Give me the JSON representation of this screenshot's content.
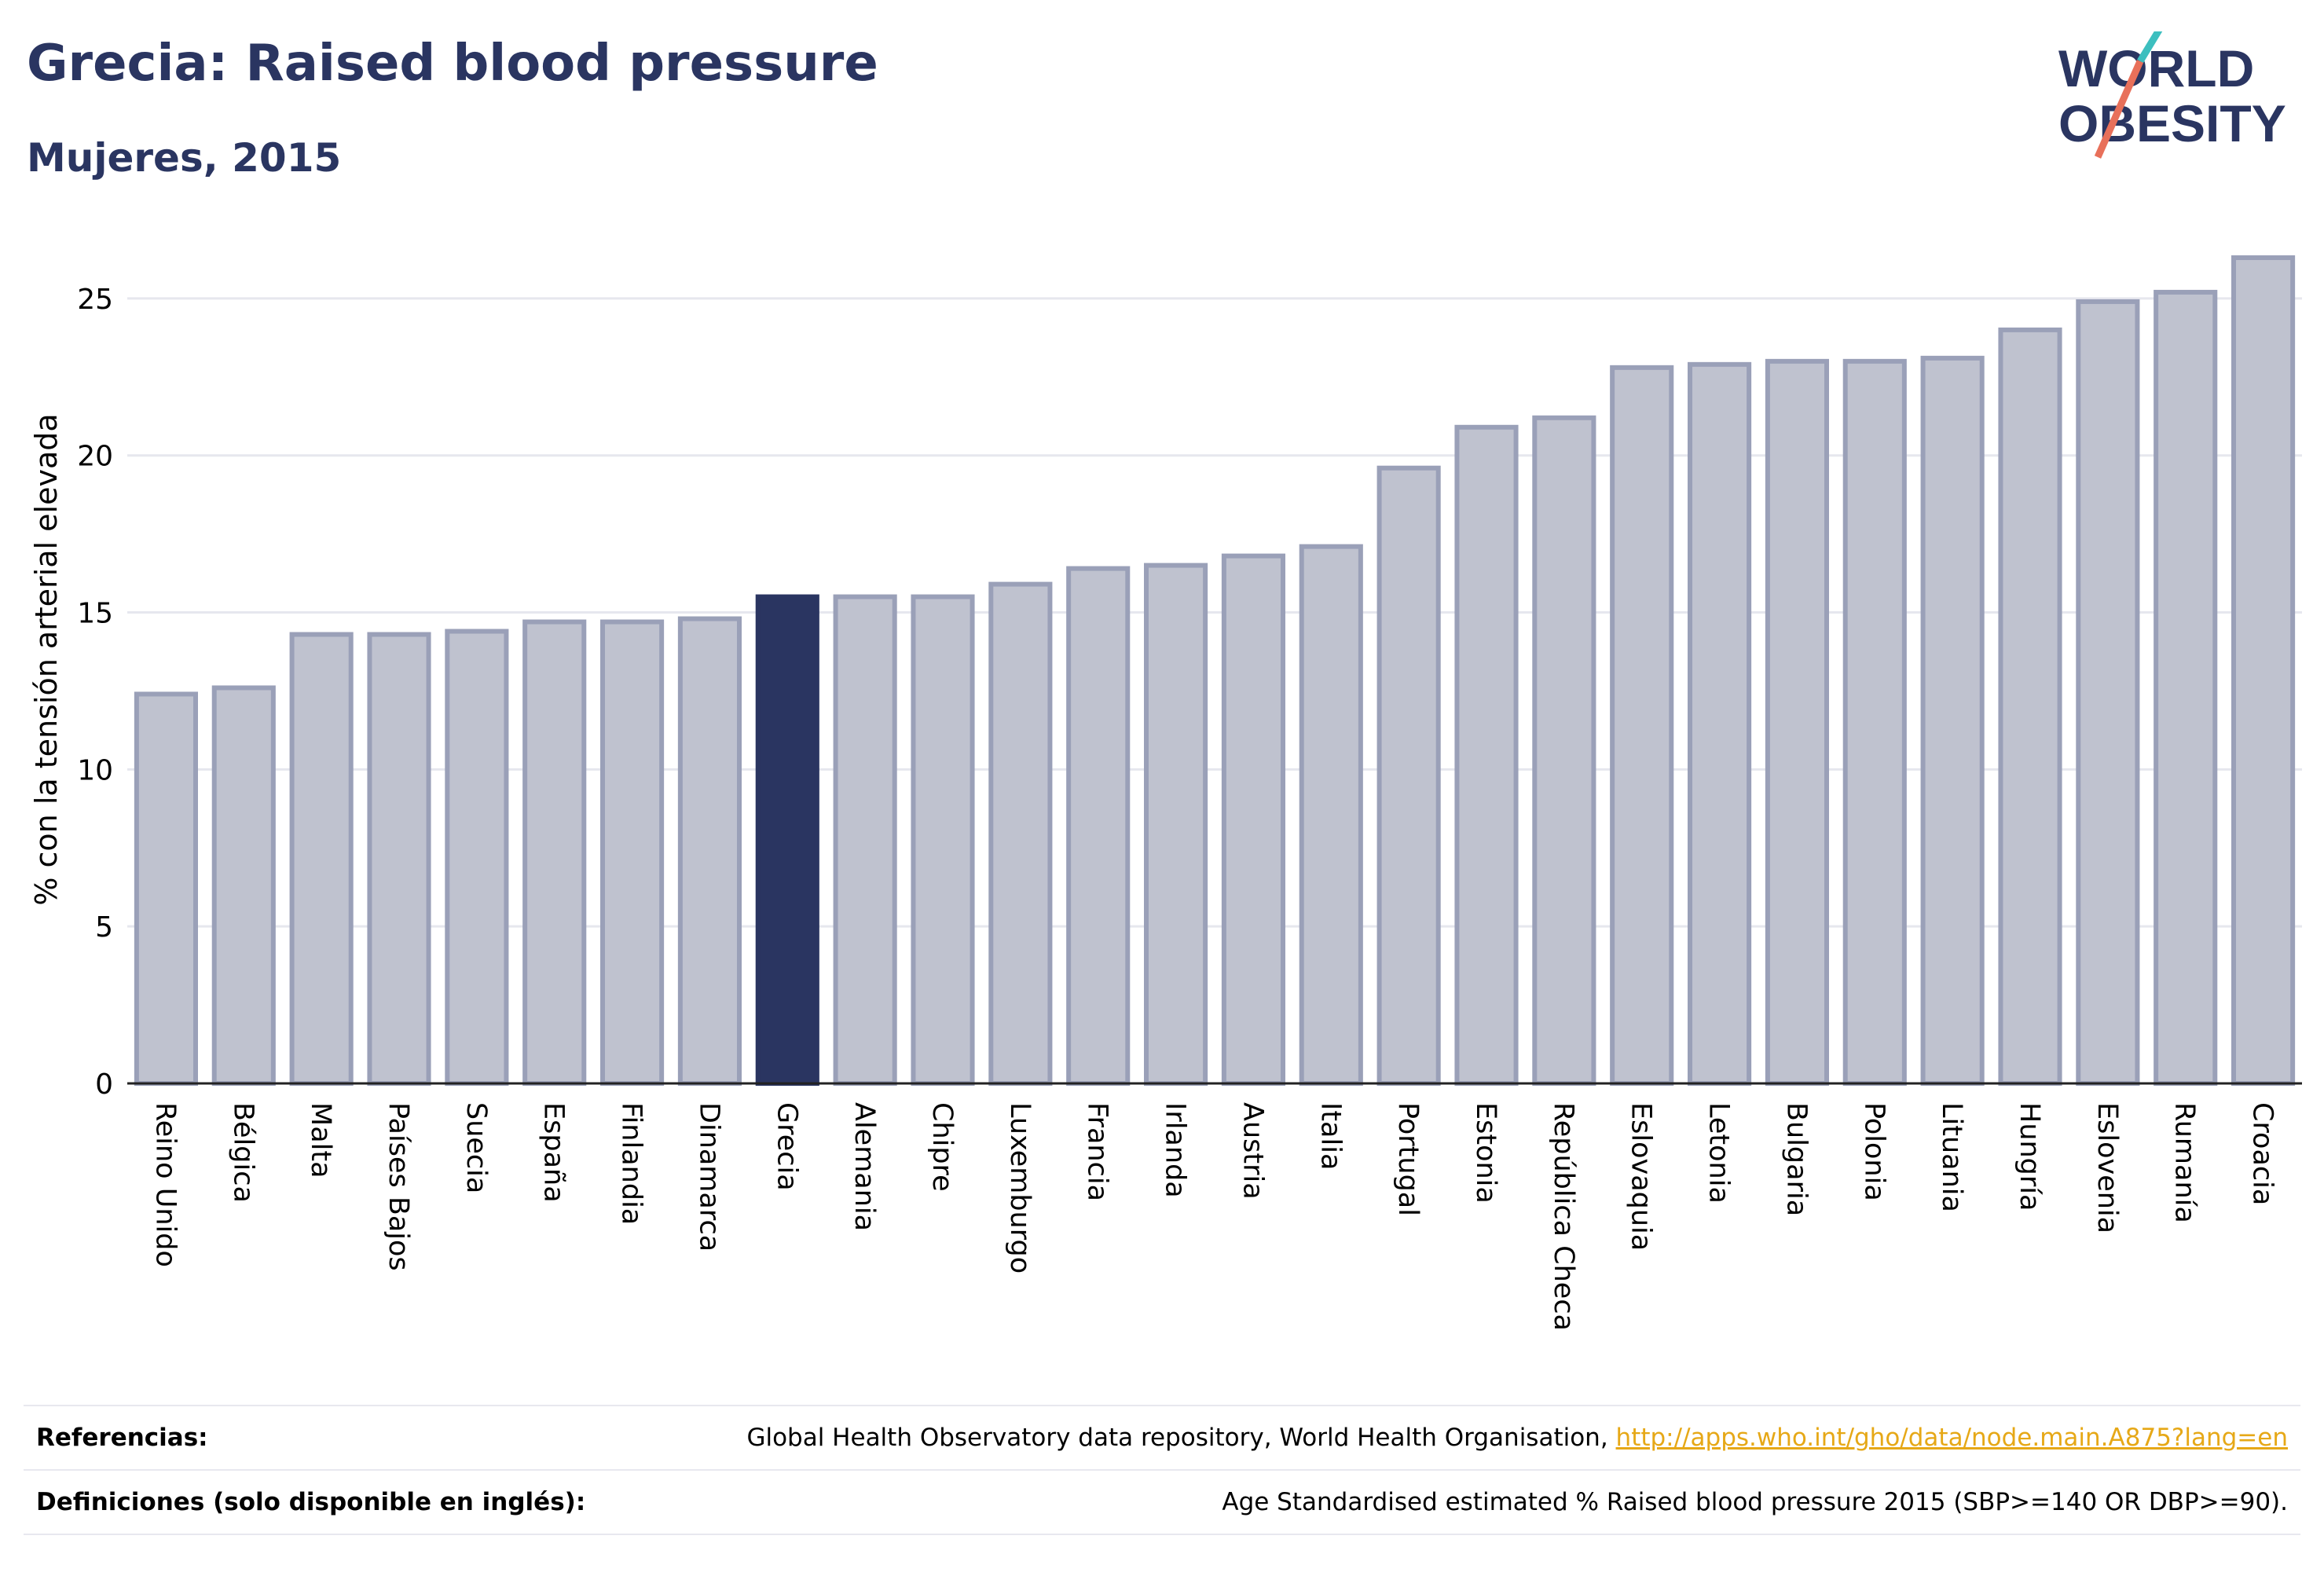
{
  "header": {
    "title": "Grecia: Raised blood pressure",
    "subtitle": "Mujeres, 2015"
  },
  "logo": {
    "line1": "WORLD",
    "line2": "OBESITY"
  },
  "colors": {
    "highlight": "#2a3561",
    "bar": "#bfc2cf",
    "bar_border": "#9aa0b8",
    "title": "#2a3561",
    "link": "#e6a817",
    "logo_teal": "#3dbfbf",
    "logo_red": "#e8705a"
  },
  "chart_data": {
    "type": "bar",
    "categories": [
      "Reino Unido",
      "Bélgica",
      "Malta",
      "Países Bajos",
      "Suecia",
      "España",
      "Finlandia",
      "Dinamarca",
      "Grecia",
      "Alemania",
      "Chipre",
      "Luxemburgo",
      "Francia",
      "Irlanda",
      "Austria",
      "Italia",
      "Portugal",
      "Estonia",
      "República Checa",
      "Eslovaquia",
      "Letonia",
      "Bulgaria",
      "Polonia",
      "Lituania",
      "Hungría",
      "Eslovenia",
      "Rumanía",
      "Croacia"
    ],
    "values": [
      12.4,
      12.6,
      14.3,
      14.3,
      14.4,
      14.7,
      14.7,
      14.8,
      15.5,
      15.5,
      15.5,
      15.9,
      16.4,
      16.5,
      16.8,
      17.1,
      19.6,
      20.9,
      21.2,
      22.8,
      22.9,
      23.0,
      23.0,
      23.1,
      24.0,
      24.9,
      25.2,
      26.3
    ],
    "highlight": "Grecia",
    "ylabel": "% con la tensión arterial elevada",
    "xlabel": "",
    "ylim": [
      0,
      27
    ],
    "yticks": [
      0,
      5,
      10,
      15,
      20,
      25
    ],
    "grid": true
  },
  "references": {
    "ref_label": "Referencias:",
    "ref_text": "Global Health Observatory data repository, World Health Organisation, ",
    "ref_link": "http://apps.who.int/gho/data/node.main.A875?lang=en",
    "def_label": "Definiciones (solo disponible en inglés):",
    "def_text": "Age Standardised estimated % Raised blood pressure 2015 (SBP>=140 OR DBP>=90)."
  }
}
